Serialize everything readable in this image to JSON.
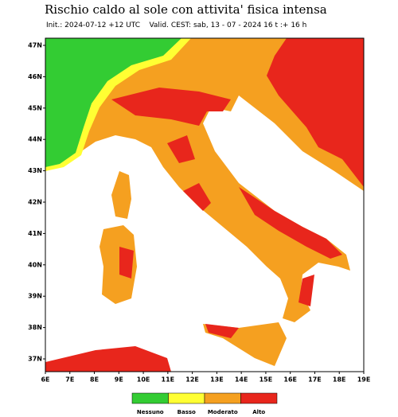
{
  "header": {
    "title": "Rischio caldo al sole con attivita' fisica intensa",
    "subtitle": "Init.: 2024-07-12 +12 UTC    Valid. CEST: sab, 13 - 07 - 2024 16 t :+ 16 h"
  },
  "map": {
    "lat_labels": [
      "47N",
      "46N",
      "45N",
      "44N",
      "43N",
      "42N",
      "41N",
      "40N",
      "39N",
      "38N",
      "37N"
    ],
    "lon_labels": [
      "6E",
      "7E",
      "8E",
      "9E",
      "10E",
      "11E",
      "12E",
      "13E",
      "14E",
      "15E",
      "16E",
      "17E",
      "18E",
      "19E"
    ]
  },
  "legend": {
    "items": [
      {
        "label": "Nessuno",
        "color": "#33cc33"
      },
      {
        "label": "Basso",
        "color": "#ffff33"
      },
      {
        "label": "Moderato",
        "color": "#f5a020"
      },
      {
        "label": "Alto",
        "color": "#e8261c"
      }
    ]
  }
}
